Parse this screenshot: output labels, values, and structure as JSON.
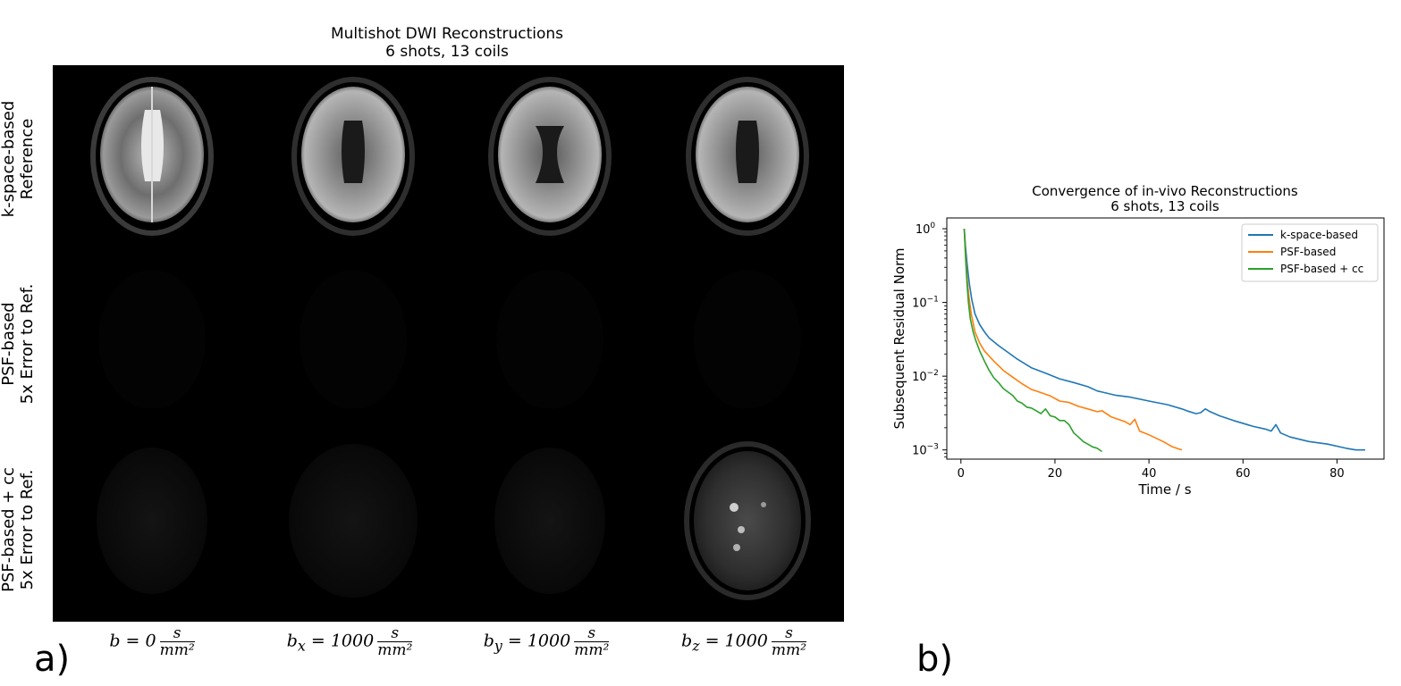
{
  "left_figure": {
    "title_line1": "Multishot DWI Reconstructions",
    "title_line2": "6 shots, 13 coils",
    "row_labels": [
      {
        "line1": "k-space-based",
        "line2": "Reference"
      },
      {
        "line1": "PSF-based",
        "line2": "5x Error to Ref."
      },
      {
        "line1": "PSF-based + cc",
        "line2": "5x Error to Ref."
      }
    ],
    "column_labels": [
      {
        "main": "b = 0",
        "sub": "",
        "value": "",
        "num": "s",
        "den": "mm²"
      },
      {
        "main": "b",
        "sub": "x",
        "value": " = 1000",
        "num": "s",
        "den": "mm²"
      },
      {
        "main": "b",
        "sub": "y",
        "value": " = 1000",
        "num": "s",
        "den": "mm²"
      },
      {
        "main": "b",
        "sub": "z",
        "value": " = 1000",
        "num": "s",
        "den": "mm²"
      }
    ],
    "panel_letter": "a)"
  },
  "right_figure": {
    "panel_letter": "b)"
  },
  "chart_data": {
    "type": "line",
    "title": "Convergence of in-vivo Reconstructions\n6 shots, 13 coils",
    "title_line1": "Convergence of in-vivo Reconstructions",
    "title_line2": "6 shots, 13 coils",
    "xlabel": "Time / s",
    "ylabel": "Subsequent Residual Norm",
    "xlim": [
      -3,
      90
    ],
    "ylim": [
      0.00075,
      1.4
    ],
    "yscale": "log",
    "xticks": [
      0,
      20,
      40,
      60,
      80
    ],
    "xtick_labels": [
      "0",
      "20",
      "40",
      "60",
      "80"
    ],
    "yticks": [
      1,
      0.1,
      0.01,
      0.001
    ],
    "ytick_labels": [
      {
        "base": "10",
        "exp": "0"
      },
      {
        "base": "10",
        "exp": "−1"
      },
      {
        "base": "10",
        "exp": "−2"
      },
      {
        "base": "10",
        "exp": "−3"
      }
    ],
    "legend_position": "top-right",
    "grid": false,
    "series": [
      {
        "name": "k-space-based",
        "color": "#1f77b4",
        "x": [
          0.7,
          1.0,
          1.4,
          1.8,
          2.3,
          3,
          4,
          5,
          6,
          8,
          10,
          12,
          15,
          18,
          21,
          24,
          27,
          29,
          30,
          33,
          36,
          40,
          44,
          47,
          48,
          50,
          51,
          52,
          53,
          55,
          58,
          62,
          65,
          66,
          67,
          68,
          70,
          74,
          78,
          82,
          84,
          86
        ],
        "y": [
          1.0,
          0.55,
          0.3,
          0.18,
          0.11,
          0.07,
          0.05,
          0.04,
          0.033,
          0.026,
          0.021,
          0.017,
          0.013,
          0.011,
          0.0092,
          0.0082,
          0.0072,
          0.0063,
          0.0061,
          0.0055,
          0.0052,
          0.0046,
          0.0041,
          0.0036,
          0.0034,
          0.0031,
          0.0032,
          0.0036,
          0.0033,
          0.0029,
          0.0025,
          0.0021,
          0.0019,
          0.0018,
          0.0022,
          0.0017,
          0.0015,
          0.0013,
          0.0012,
          0.00105,
          0.001,
          0.001
        ]
      },
      {
        "name": "PSF-based",
        "color": "#ff7f0e",
        "x": [
          0.7,
          1.0,
          1.3,
          1.7,
          2.2,
          3,
          4,
          5,
          7,
          9,
          11,
          13,
          15,
          17,
          19,
          21,
          23,
          25,
          27,
          29,
          30,
          32,
          35,
          36,
          37,
          38,
          40,
          43,
          45,
          47
        ],
        "y": [
          1.0,
          0.45,
          0.22,
          0.12,
          0.07,
          0.04,
          0.028,
          0.022,
          0.016,
          0.012,
          0.0097,
          0.0079,
          0.0066,
          0.006,
          0.0054,
          0.0046,
          0.0044,
          0.0039,
          0.0036,
          0.0033,
          0.0034,
          0.0028,
          0.0024,
          0.0022,
          0.0026,
          0.0018,
          0.0016,
          0.0013,
          0.0011,
          0.001
        ]
      },
      {
        "name": "PSF-based + cc",
        "color": "#2ca02c",
        "x": [
          0.7,
          1.0,
          1.3,
          1.6,
          2.0,
          2.6,
          3.2,
          4,
          5,
          6,
          7,
          8,
          9,
          10,
          11,
          12,
          13,
          14,
          15,
          16,
          17,
          18,
          19,
          20,
          21,
          22,
          23,
          24,
          25,
          26,
          27,
          28,
          29,
          30
        ],
        "y": [
          1.0,
          0.4,
          0.18,
          0.1,
          0.06,
          0.04,
          0.03,
          0.022,
          0.016,
          0.012,
          0.0095,
          0.0082,
          0.0068,
          0.0061,
          0.0055,
          0.0046,
          0.0043,
          0.0038,
          0.0037,
          0.0034,
          0.0031,
          0.0036,
          0.0029,
          0.0028,
          0.0025,
          0.0025,
          0.0022,
          0.0017,
          0.0015,
          0.0013,
          0.0012,
          0.0011,
          0.00105,
          0.00095
        ]
      }
    ]
  }
}
